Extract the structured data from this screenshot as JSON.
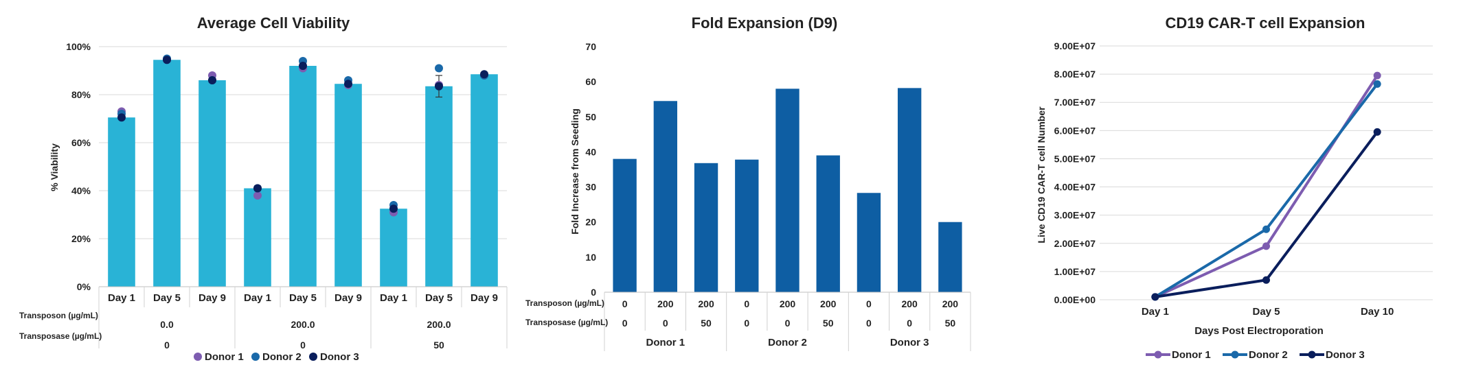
{
  "chart_data": [
    {
      "type": "bar",
      "title": "Average Cell Viability",
      "ylabel": "% Viability",
      "ylim": [
        0,
        100
      ],
      "yticks": [
        "0%",
        "20%",
        "40%",
        "60%",
        "80%",
        "100%"
      ],
      "bar_color": "#29b3d6",
      "grid": true,
      "categories": [
        "Day 1",
        "Day 5",
        "Day 9",
        "Day 1",
        "Day 5",
        "Day 9",
        "Day 1",
        "Day 5",
        "Day 9"
      ],
      "values": [
        70.5,
        94.5,
        86.0,
        41.0,
        92.0,
        84.5,
        32.5,
        83.5,
        88.5
      ],
      "error": [
        0,
        0,
        0,
        1,
        0,
        0,
        0,
        4.5,
        0
      ],
      "table_rows": [
        {
          "label": "Transposon (µg/mL)",
          "groups": [
            "0.0",
            "200.0",
            "200.0"
          ]
        },
        {
          "label": "Transposase (µg/mL)",
          "groups": [
            "0",
            "0",
            "50"
          ]
        }
      ],
      "points": [
        {
          "name": "Donor 1",
          "color": "#7d5cb0",
          "values": [
            73,
            94.5,
            88,
            38,
            91,
            84,
            31,
            84,
            88
          ]
        },
        {
          "name": "Donor 2",
          "color": "#1a69a9",
          "values": [
            72,
            95,
            86,
            41,
            94,
            86,
            34,
            91,
            88
          ]
        },
        {
          "name": "Donor 3",
          "color": "#0a1e5c",
          "values": [
            70.5,
            94.5,
            86,
            41,
            92,
            84.5,
            32.5,
            83.5,
            88.5
          ]
        }
      ],
      "legend": [
        "Donor 1",
        "Donor 2",
        "Donor 3"
      ],
      "legend_position": "bottom"
    },
    {
      "type": "bar",
      "title": "Fold Expansion (D9)",
      "ylabel": "Fold Increase from Seeding",
      "ylim": [
        0,
        70
      ],
      "yticks": [
        "0",
        "10",
        "20",
        "30",
        "40",
        "50",
        "60",
        "70"
      ],
      "bar_color": "#0e5ea3",
      "grid": false,
      "values": [
        38,
        54.5,
        36.8,
        37.8,
        58,
        39,
        28.3,
        58.2,
        20
      ],
      "error": [
        0,
        0,
        0,
        0,
        0,
        0,
        0,
        0,
        0
      ],
      "table_rows": [
        {
          "label": "Transposon (µg/mL)",
          "cells": [
            "0",
            "200",
            "200",
            "0",
            "200",
            "200",
            "0",
            "200",
            "200"
          ]
        },
        {
          "label": "Transposase (µg/mL)",
          "cells": [
            "0",
            "0",
            "50",
            "0",
            "0",
            "50",
            "0",
            "0",
            "50"
          ]
        }
      ],
      "groups": [
        "Donor 1",
        "Donor 2",
        "Donor 3"
      ]
    },
    {
      "type": "line",
      "title": "CD19 CAR-T cell Expansion",
      "xlabel": "Days Post Electroporation",
      "ylabel": "Live CD19 CAR-T cell Number",
      "categories": [
        "Day 1",
        "Day 5",
        "Day 10"
      ],
      "ylim": [
        0,
        90000000
      ],
      "yticks": [
        "0.00E+00",
        "1.00E+07",
        "2.00E+07",
        "3.00E+07",
        "4.00E+07",
        "5.00E+07",
        "6.00E+07",
        "7.00E+07",
        "8.00E+07",
        "9.00E+07"
      ],
      "grid": true,
      "series": [
        {
          "name": "Donor 1",
          "color": "#7d5cb0",
          "values": [
            1000000,
            19000000,
            79500000
          ]
        },
        {
          "name": "Donor 2",
          "color": "#1a69a9",
          "values": [
            1000000,
            25000000,
            76500000
          ]
        },
        {
          "name": "Donor 3",
          "color": "#0a1e5c",
          "values": [
            1000000,
            7000000,
            59500000
          ]
        }
      ],
      "legend_position": "bottom"
    }
  ]
}
